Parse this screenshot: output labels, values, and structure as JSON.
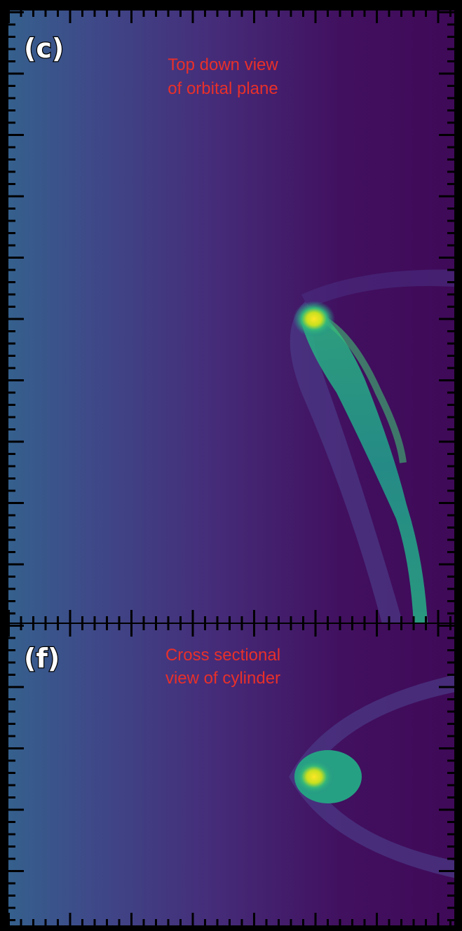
{
  "panels": [
    {
      "label": "(c)",
      "caption": [
        "Top down view",
        "of orbital plane"
      ]
    },
    {
      "label": "(f)",
      "caption": [
        "Cross sectional",
        "view of cylinder"
      ]
    }
  ]
}
